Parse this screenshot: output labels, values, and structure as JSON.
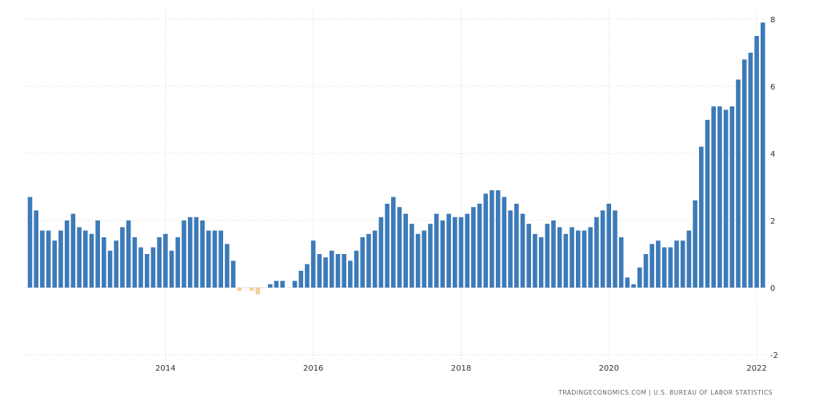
{
  "chart_data": {
    "type": "bar",
    "x_start": "2012-03",
    "frequency": "monthly",
    "values": [
      2.7,
      2.3,
      1.7,
      1.7,
      1.4,
      1.7,
      2.0,
      2.2,
      1.8,
      1.7,
      1.6,
      2.0,
      1.5,
      1.1,
      1.4,
      1.8,
      2.0,
      1.5,
      1.2,
      1.0,
      1.2,
      1.5,
      1.6,
      1.1,
      1.5,
      2.0,
      2.1,
      2.1,
      2.0,
      1.7,
      1.7,
      1.7,
      1.3,
      0.8,
      -0.1,
      0.0,
      -0.1,
      -0.2,
      0.0,
      0.1,
      0.2,
      0.2,
      0.0,
      0.2,
      0.5,
      0.7,
      1.4,
      1.0,
      0.9,
      1.1,
      1.0,
      1.0,
      0.8,
      1.1,
      1.5,
      1.6,
      1.7,
      2.1,
      2.5,
      2.7,
      2.4,
      2.2,
      1.9,
      1.6,
      1.7,
      1.9,
      2.2,
      2.0,
      2.2,
      2.1,
      2.1,
      2.2,
      2.4,
      2.5,
      2.8,
      2.9,
      2.9,
      2.7,
      2.3,
      2.5,
      2.2,
      1.9,
      1.6,
      1.5,
      1.9,
      2.0,
      1.8,
      1.6,
      1.8,
      1.7,
      1.7,
      1.8,
      2.1,
      2.3,
      2.5,
      2.3,
      1.5,
      0.3,
      0.1,
      0.6,
      1.0,
      1.3,
      1.4,
      1.2,
      1.2,
      1.4,
      1.4,
      1.7,
      2.6,
      4.2,
      5.0,
      5.4,
      5.4,
      5.3,
      5.4,
      6.2,
      6.8,
      7.0,
      7.5,
      7.9
    ],
    "x_tick_labels": [
      "2014",
      "2016",
      "2018",
      "2020",
      "2022"
    ],
    "y_tick_labels": [
      "8",
      "6",
      "4",
      "2",
      "0",
      "-2"
    ],
    "ylim": [
      -2,
      8
    ],
    "y_ticks": [
      8,
      6,
      4,
      2,
      0,
      -2
    ],
    "y_axis_position": "right",
    "grid": true,
    "colors": {
      "positive": "#3d7ab8",
      "negative": "#f2cf9b",
      "grid": "#e6e6e6",
      "text": "#333333"
    }
  },
  "source_text": "TRADINGECONOMICS.COM  |  U.S. BUREAU OF LABOR STATISTICS"
}
